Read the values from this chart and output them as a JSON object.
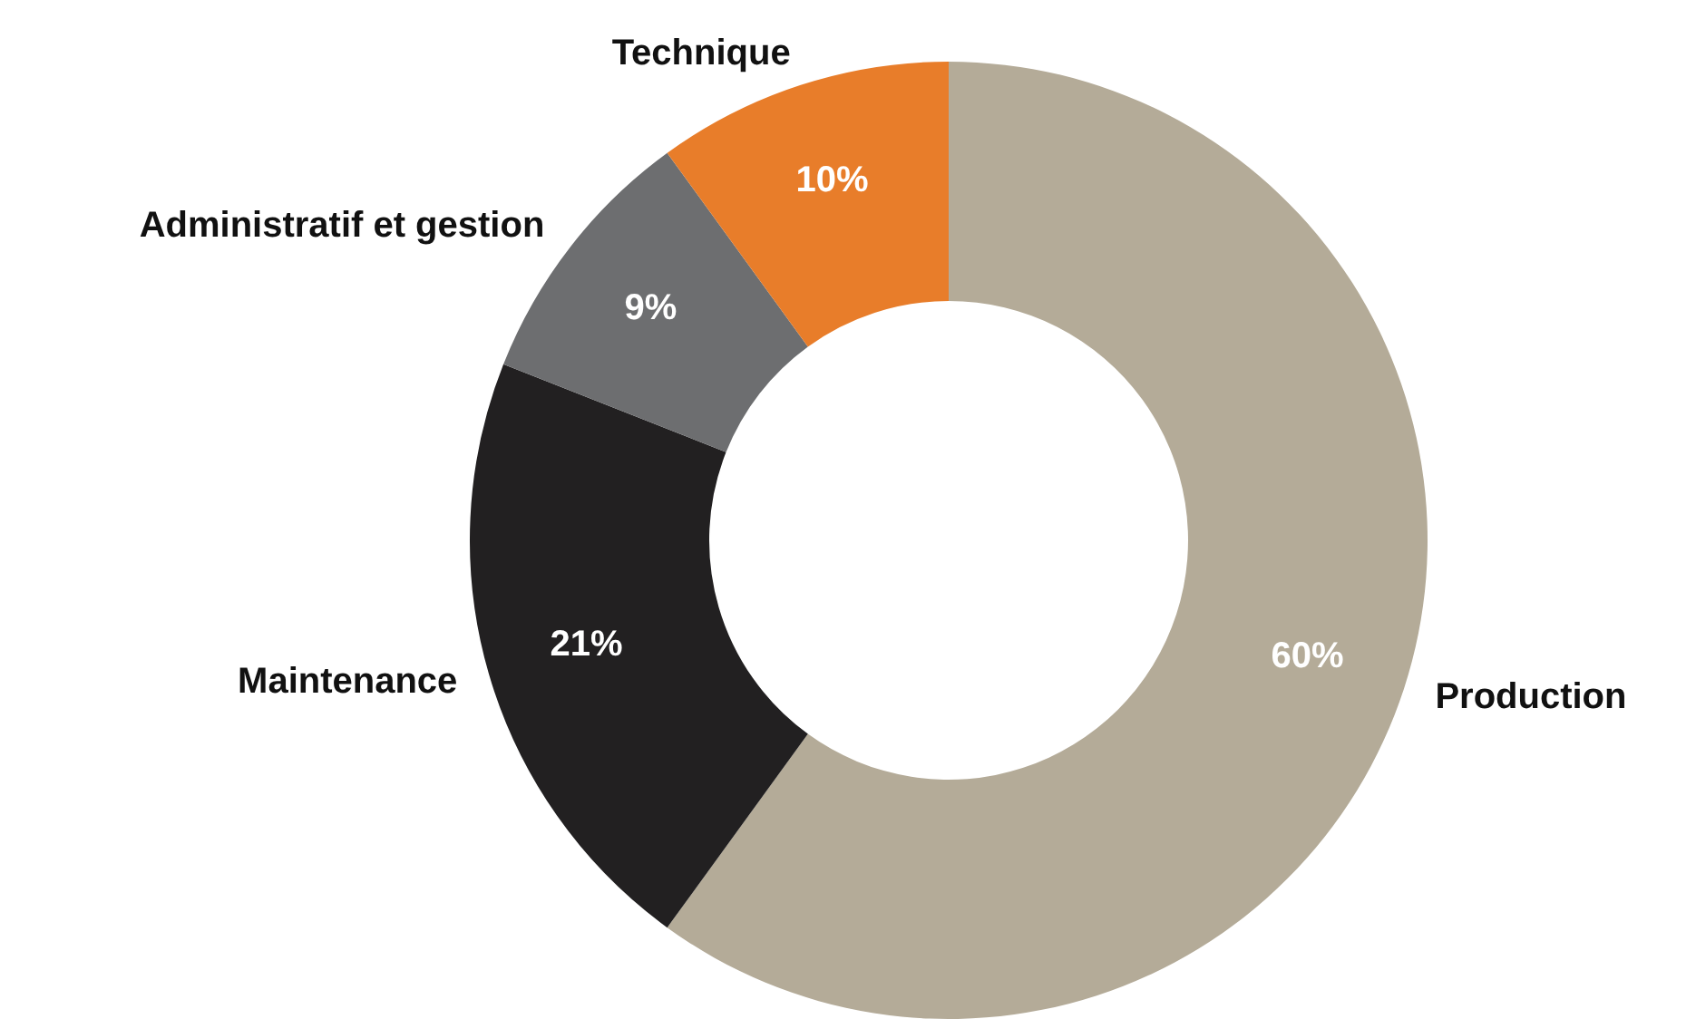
{
  "chart_data": {
    "type": "donut",
    "categories": [
      "Production",
      "Maintenance",
      "Administratif et gestion",
      "Technique"
    ],
    "values": [
      60,
      21,
      9,
      10
    ],
    "colors": [
      "#b4ab98",
      "#222021",
      "#6d6e70",
      "#e87d2a"
    ],
    "value_labels": [
      "60%",
      "21%",
      "9%",
      "10%"
    ],
    "legend": false
  }
}
